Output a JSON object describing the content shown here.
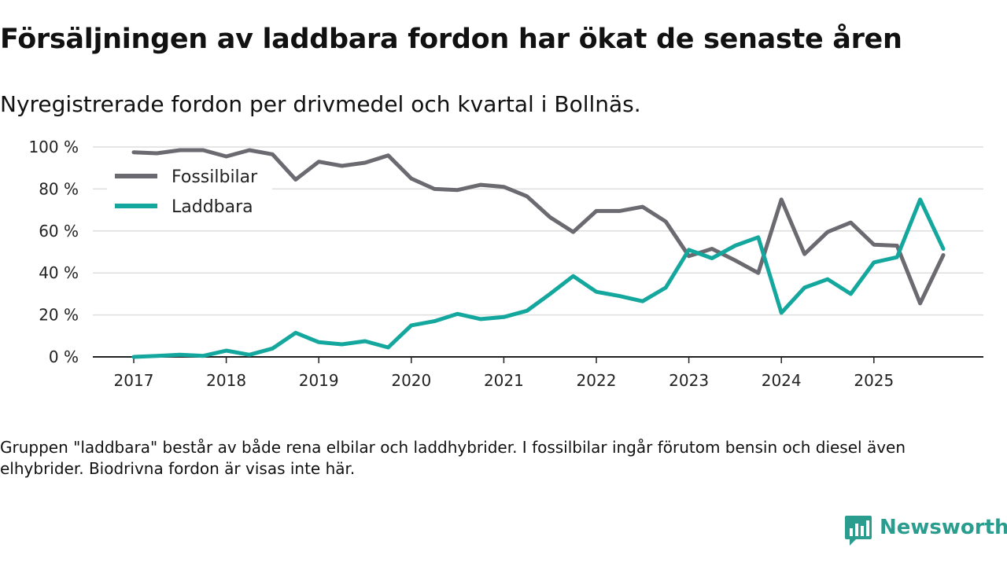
{
  "header": {
    "title": "Försäljningen av laddbara fordon har ökat de senaste åren",
    "subtitle": "Nyregistrerade fordon per drivmedel och kvartal i Bollnäs."
  },
  "footer": {
    "note": "Gruppen \"laddbara\" består av både rena elbilar och laddhybrider. I fossilbilar ingår förutom bensin och diesel även elhybrider. Biodrivna fordon är visas inte här.",
    "brand": "Newsworthy"
  },
  "chart_data": {
    "type": "line",
    "title": "Försäljningen av laddbara fordon har ökat de senaste åren",
    "subtitle": "Nyregistrerade fordon per drivmedel och kvartal i Bollnäs.",
    "xlabel": "",
    "ylabel": "",
    "ylim": [
      0,
      100
    ],
    "y_ticks": [
      0,
      20,
      40,
      60,
      80,
      100
    ],
    "y_tick_labels": [
      "0 %",
      "20 %",
      "40 %",
      "60 %",
      "80 %",
      "100 %"
    ],
    "x_tick_labels": [
      "2017",
      "2018",
      "2019",
      "2020",
      "2021",
      "2022",
      "2023",
      "2024",
      "2025"
    ],
    "grid": true,
    "legend_position": "top-left",
    "x": [
      "2017Q1",
      "2017Q2",
      "2017Q3",
      "2017Q4",
      "2018Q1",
      "2018Q2",
      "2018Q3",
      "2018Q4",
      "2019Q1",
      "2019Q2",
      "2019Q3",
      "2019Q4",
      "2020Q1",
      "2020Q2",
      "2020Q3",
      "2020Q4",
      "2021Q1",
      "2021Q2",
      "2021Q3",
      "2021Q4",
      "2022Q1",
      "2022Q2",
      "2022Q3",
      "2022Q4",
      "2023Q1",
      "2023Q2",
      "2023Q3",
      "2023Q4",
      "2024Q1",
      "2024Q2",
      "2024Q3",
      "2024Q4",
      "2025Q1",
      "2025Q2",
      "2025Q3",
      "2025Q4"
    ],
    "series": [
      {
        "name": "Fossilbilar",
        "color": "#6b6a70",
        "values": [
          97.5,
          97,
          98.5,
          98.5,
          95.5,
          98.5,
          96.5,
          84.5,
          93,
          91,
          92.5,
          96,
          85,
          80,
          79.5,
          82,
          81,
          76.5,
          66.5,
          59.5,
          69.5,
          69.5,
          71.5,
          64.5,
          48,
          51.5,
          46,
          40,
          75,
          49,
          59.5,
          64,
          53.5,
          53,
          25.5,
          48.5
        ]
      },
      {
        "name": "Laddbara",
        "color": "#14a79d",
        "values": [
          0,
          0.5,
          1,
          0.5,
          3,
          1,
          4,
          11.5,
          7,
          6,
          7.5,
          4.5,
          15,
          17,
          20.5,
          18,
          19,
          22,
          30,
          38.5,
          31,
          29,
          26.5,
          33,
          51,
          47,
          53,
          57,
          21,
          33,
          37,
          30,
          45,
          47.5,
          75,
          51.5
        ]
      }
    ]
  }
}
